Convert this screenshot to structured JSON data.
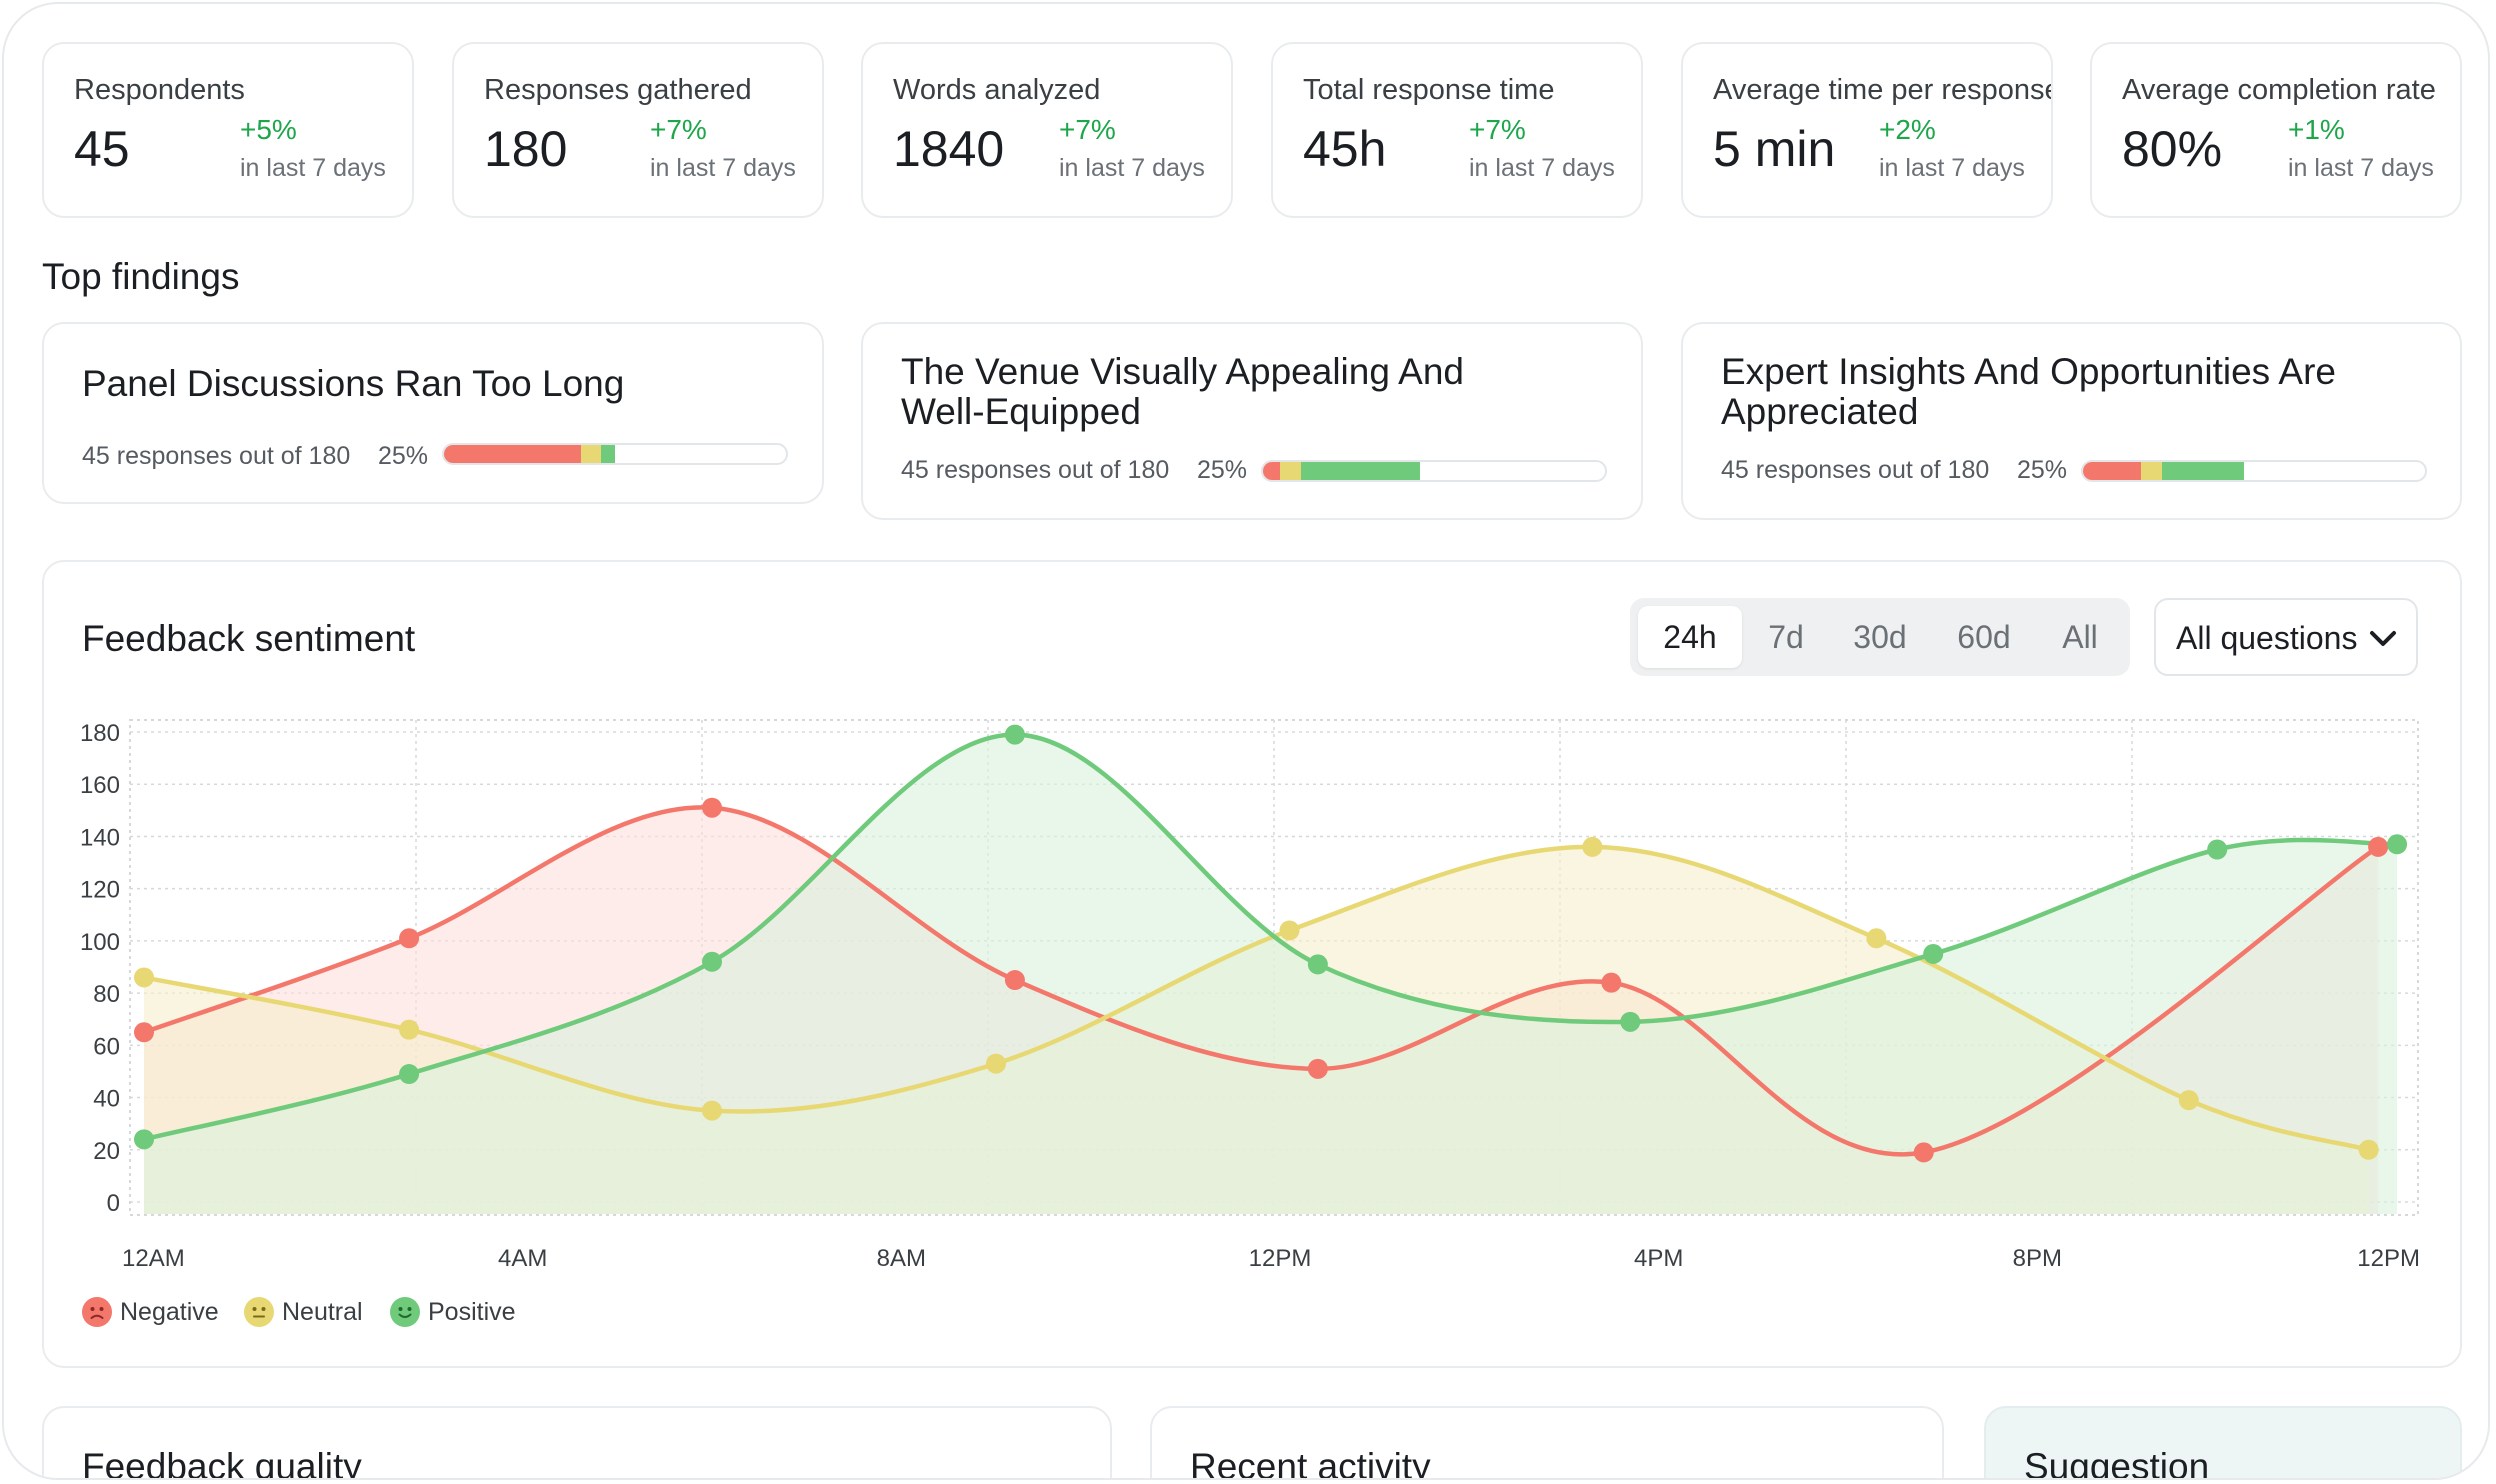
{
  "stats": [
    {
      "label": "Respondents",
      "value": "45",
      "delta": "+5%",
      "period": "in last 7 days"
    },
    {
      "label": "Responses gathered",
      "value": "180",
      "delta": "+7%",
      "period": "in last 7 days"
    },
    {
      "label": "Words analyzed",
      "value": "1840",
      "delta": "+7%",
      "period": "in last 7 days"
    },
    {
      "label": "Total response time",
      "value": "45h",
      "delta": "+7%",
      "period": "in last 7 days"
    },
    {
      "label": "Average time per response",
      "value": "5 min",
      "delta": "+2%",
      "period": "in last 7 days"
    },
    {
      "label": "Average completion rate",
      "value": "80%",
      "delta": "+1%",
      "period": "in last 7 days"
    }
  ],
  "top_findings": {
    "title": "Top findings",
    "items": [
      {
        "title": "Panel Discussions Ran Too Long",
        "meta": "45 responses out of 180",
        "percent": "25%",
        "split": {
          "negative": 0.4,
          "neutral": 0.06,
          "positive": 0.04
        }
      },
      {
        "title": "The Venue Visually Appealing And Well-Equipped",
        "meta": "45 responses out of 180",
        "percent": "25%",
        "split": {
          "negative": 0.05,
          "neutral": 0.06,
          "positive": 0.35
        }
      },
      {
        "title": "Expert Insights And Opportunities Are Appreciated",
        "meta": "45 responses out of 180",
        "percent": "25%",
        "split": {
          "negative": 0.17,
          "neutral": 0.06,
          "positive": 0.24
        }
      }
    ]
  },
  "sentiment": {
    "title": "Feedback sentiment",
    "ranges": [
      "24h",
      "7d",
      "30d",
      "60d",
      "All"
    ],
    "active_range": "24h",
    "filter": {
      "label": "All questions",
      "icon": "chevron-down-icon"
    },
    "legend": [
      {
        "name": "Negative",
        "color": "#f4776b",
        "icon": "sad-face-icon"
      },
      {
        "name": "Neutral",
        "color": "#e8d873",
        "icon": "neutral-face-icon"
      },
      {
        "name": "Positive",
        "color": "#6fca7b",
        "icon": "smile-face-icon"
      }
    ]
  },
  "chart_data": {
    "type": "area",
    "x_tick_labels": [
      "12AM",
      "4AM",
      "8AM",
      "12PM",
      "4PM",
      "8PM",
      "12PM"
    ],
    "x_range": [
      0,
      24
    ],
    "ylim": [
      0,
      180
    ],
    "y_ticks": [
      0,
      20,
      40,
      60,
      80,
      100,
      120,
      140,
      160,
      180
    ],
    "grid": true,
    "legend_position": "bottom-left",
    "series": [
      {
        "name": "Negative",
        "color": "#f4776b",
        "fill": "#fde0de",
        "points": [
          [
            0,
            65
          ],
          [
            2.8,
            101
          ],
          [
            6,
            151
          ],
          [
            9.2,
            85
          ],
          [
            12.4,
            51
          ],
          [
            15.5,
            84
          ],
          [
            18.8,
            19
          ],
          [
            23.6,
            136
          ]
        ]
      },
      {
        "name": "Neutral",
        "color": "#e8d873",
        "fill": "#f5eecb",
        "points": [
          [
            0,
            86
          ],
          [
            2.8,
            66
          ],
          [
            6,
            35
          ],
          [
            9,
            53
          ],
          [
            12.1,
            104
          ],
          [
            15.3,
            136
          ],
          [
            18.3,
            101
          ],
          [
            21.6,
            39
          ],
          [
            23.5,
            20
          ]
        ]
      },
      {
        "name": "Positive",
        "color": "#6fca7b",
        "fill": "#d9f2dc",
        "points": [
          [
            0,
            24
          ],
          [
            2.8,
            49
          ],
          [
            6,
            92
          ],
          [
            9.2,
            179
          ],
          [
            12.4,
            91
          ],
          [
            15.7,
            69
          ],
          [
            18.9,
            95
          ],
          [
            21.9,
            135
          ],
          [
            23.8,
            137
          ]
        ]
      }
    ]
  },
  "bottom": {
    "quality_title": "Feedback quality",
    "activity_title": "Recent activity",
    "suggestion_title": "Suggestion"
  }
}
